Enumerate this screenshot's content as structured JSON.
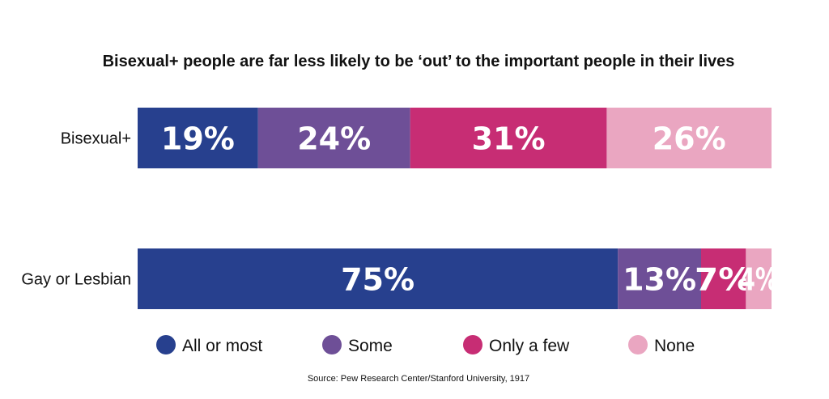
{
  "chart_data": {
    "type": "bar",
    "orientation": "horizontal",
    "stacked": true,
    "title": "Bisexual+ people are far less likely to be ‘out’ to the important people in their lives",
    "categories": [
      "Bisexual+",
      "Gay or Lesbian"
    ],
    "series": [
      {
        "name": "All or most",
        "values": [
          19,
          75
        ],
        "labels": [
          "19%",
          "75%"
        ],
        "color": "#27408e"
      },
      {
        "name": "Some",
        "values": [
          24,
          13
        ],
        "labels": [
          "24%",
          "13%"
        ],
        "color": "#6e4f97"
      },
      {
        "name": "Only a few",
        "values": [
          31,
          7
        ],
        "labels": [
          "31%",
          "7%"
        ],
        "color": "#c72d74"
      },
      {
        "name": "None",
        "values": [
          26,
          4
        ],
        "labels": [
          "26%",
          "4%"
        ],
        "color": "#eaa6c1"
      }
    ],
    "unit": "%",
    "xlim": [
      0,
      100
    ],
    "grid": false,
    "legend_position": "bottom",
    "source": "Source: Pew Research Center/Stanford University, 1917"
  }
}
